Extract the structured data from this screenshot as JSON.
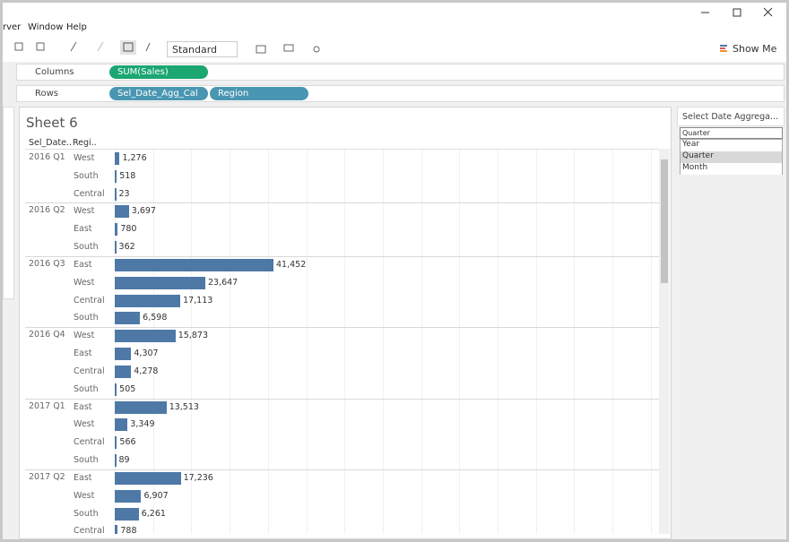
{
  "menu": [
    "rver",
    "Window",
    "Help"
  ],
  "toolbar": {
    "mark_type": "Standard",
    "show_me": "Show Me"
  },
  "shelves": {
    "columns_label": "Columns",
    "columns_pills": [
      "SUM(Sales)"
    ],
    "rows_label": "Rows",
    "rows_pills": [
      "Sel_Date_Agg_Cal",
      "Region"
    ]
  },
  "sheet": {
    "title": "Sheet 6",
    "headers": [
      "Sel_Date..",
      "Regi.."
    ]
  },
  "chart_data": {
    "type": "bar",
    "orientation": "horizontal",
    "color": "#4e79a7",
    "groups": [
      {
        "label": "2016 Q1",
        "categories": [
          "West",
          "South",
          "Central"
        ],
        "values": [
          1276,
          518,
          23
        ],
        "value_labels": [
          "1,276",
          "518",
          "23"
        ]
      },
      {
        "label": "2016 Q2",
        "categories": [
          "West",
          "East",
          "South"
        ],
        "values": [
          3697,
          780,
          362
        ],
        "value_labels": [
          "3,697",
          "780",
          "362"
        ]
      },
      {
        "label": "2016 Q3",
        "categories": [
          "East",
          "West",
          "Central",
          "South"
        ],
        "values": [
          41452,
          23647,
          17113,
          6598
        ],
        "value_labels": [
          "41,452",
          "23,647",
          "17,113",
          "6,598"
        ]
      },
      {
        "label": "2016 Q4",
        "categories": [
          "West",
          "East",
          "Central",
          "South"
        ],
        "values": [
          15873,
          4307,
          4278,
          505
        ],
        "value_labels": [
          "15,873",
          "4,307",
          "4,278",
          "505"
        ]
      },
      {
        "label": "2017 Q1",
        "categories": [
          "East",
          "West",
          "Central",
          "South"
        ],
        "values": [
          13513,
          3349,
          566,
          89
        ],
        "value_labels": [
          "13,513",
          "3,349",
          "566",
          "89"
        ]
      },
      {
        "label": "2017 Q2",
        "categories": [
          "East",
          "West",
          "South",
          "Central"
        ],
        "values": [
          17236,
          6907,
          6261,
          788
        ],
        "value_labels": [
          "17,236",
          "6,907",
          "6,261",
          "788"
        ]
      }
    ]
  },
  "filter": {
    "title": "Select Date Aggrega...",
    "selected": "Quarter",
    "options": [
      "Year",
      "Quarter",
      "Month"
    ]
  }
}
